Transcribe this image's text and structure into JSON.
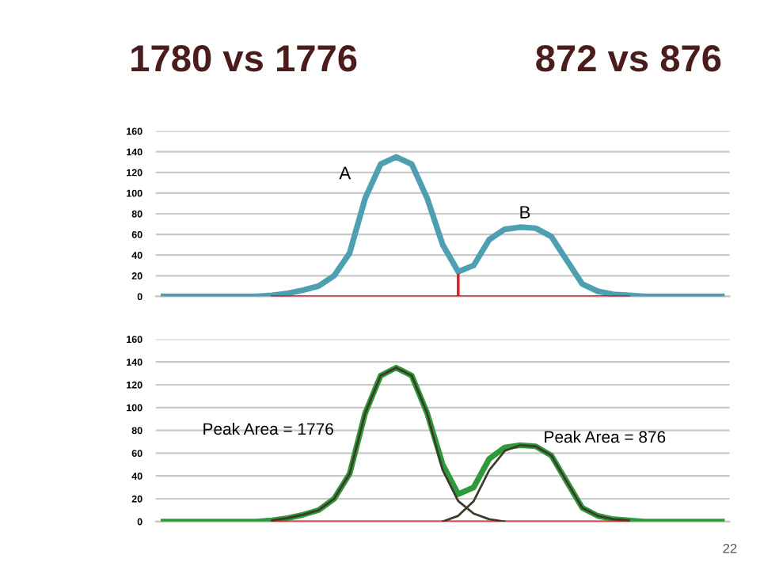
{
  "chart_data": [
    {
      "type": "line",
      "title": "1780 vs 1776",
      "subtitle": "872 vs 876",
      "categories": [
        null,
        null,
        null,
        null,
        null,
        null,
        null,
        null,
        null,
        null,
        null,
        null,
        null,
        null,
        null,
        null,
        null,
        null,
        null,
        null,
        null,
        null,
        null,
        null,
        null,
        null,
        null,
        null,
        null,
        null,
        null,
        null,
        null,
        null,
        null,
        null,
        null
      ],
      "series": [
        {
          "color": "#4f9fb3",
          "values": [
            0,
            0,
            0,
            0,
            0,
            0,
            0,
            1,
            3,
            6,
            10,
            20,
            42,
            95,
            128,
            135,
            128,
            95,
            50,
            24,
            30,
            55,
            65,
            67,
            66,
            58,
            35,
            12,
            5,
            2,
            1,
            0,
            0,
            0,
            0,
            0,
            0
          ]
        },
        {
          "color": "#e02020",
          "values": [
            null,
            null,
            null,
            null,
            null,
            null,
            null,
            0,
            0,
            0,
            0,
            0,
            0,
            0,
            0,
            0,
            0,
            0,
            0,
            0,
            0,
            0,
            0,
            0,
            0,
            0,
            0,
            0,
            0,
            0,
            0,
            null,
            null,
            null,
            null,
            null,
            null
          ]
        },
        {
          "type": "bar",
          "color": "#e02020",
          "values": [
            null,
            null,
            null,
            null,
            null,
            null,
            null,
            null,
            null,
            null,
            null,
            null,
            null,
            null,
            null,
            null,
            null,
            null,
            null,
            22,
            null,
            null,
            null,
            null,
            null,
            null,
            null,
            null,
            null,
            null,
            null,
            null,
            null,
            null,
            null,
            null,
            null
          ]
        }
      ],
      "annotations": [
        "A",
        "B"
      ],
      "ylim": [
        0,
        160
      ],
      "yticks": [
        0,
        20,
        40,
        60,
        80,
        100,
        120,
        140,
        160
      ],
      "grid": "y",
      "tick_labels": "y"
    },
    {
      "type": "line",
      "categories": [
        null,
        null,
        null,
        null,
        null,
        null,
        null,
        null,
        null,
        null,
        null,
        null,
        null,
        null,
        null,
        null,
        null,
        null,
        null,
        null,
        null,
        null,
        null,
        null,
        null,
        null,
        null,
        null,
        null,
        null,
        null,
        null,
        null,
        null,
        null,
        null,
        null
      ],
      "series": [
        {
          "color": "#2e9a3a",
          "values": [
            0,
            0,
            0,
            0,
            0,
            0,
            0,
            1,
            3,
            6,
            10,
            20,
            42,
            95,
            128,
            135,
            128,
            95,
            50,
            24,
            30,
            55,
            65,
            67,
            66,
            58,
            35,
            12,
            5,
            2,
            1,
            0,
            0,
            0,
            0,
            0,
            0
          ]
        },
        {
          "color": "#e02020",
          "values": [
            null,
            null,
            null,
            null,
            null,
            null,
            null,
            0,
            0,
            0,
            0,
            0,
            0,
            0,
            0,
            0,
            0,
            0,
            0,
            0,
            0,
            0,
            0,
            0,
            0,
            0,
            0,
            0,
            0,
            0,
            0,
            null,
            null,
            null,
            null,
            null,
            null
          ]
        },
        {
          "color": "#3d3a2a",
          "values": [
            null,
            null,
            null,
            null,
            null,
            null,
            null,
            1,
            3,
            6,
            10,
            20,
            42,
            95,
            128,
            135,
            128,
            95,
            45,
            18,
            7,
            2,
            0,
            null,
            null,
            null,
            null,
            null,
            null,
            null,
            null,
            null,
            null,
            null,
            null,
            null,
            null
          ]
        },
        {
          "color": "#3d3a2a",
          "values": [
            null,
            null,
            null,
            null,
            null,
            null,
            null,
            null,
            null,
            null,
            null,
            null,
            null,
            null,
            null,
            null,
            null,
            null,
            0,
            5,
            18,
            45,
            62,
            67,
            66,
            58,
            35,
            12,
            5,
            2,
            1,
            null,
            null,
            null,
            null,
            null,
            null
          ]
        }
      ],
      "annotations": [
        "Peak Area = 1776",
        "Peak Area = 876",
        "22"
      ],
      "ylim": [
        0,
        160
      ],
      "yticks": [
        0,
        20,
        40,
        60,
        80,
        100,
        120,
        140,
        160
      ],
      "grid": "y",
      "tick_labels": "y"
    }
  ]
}
